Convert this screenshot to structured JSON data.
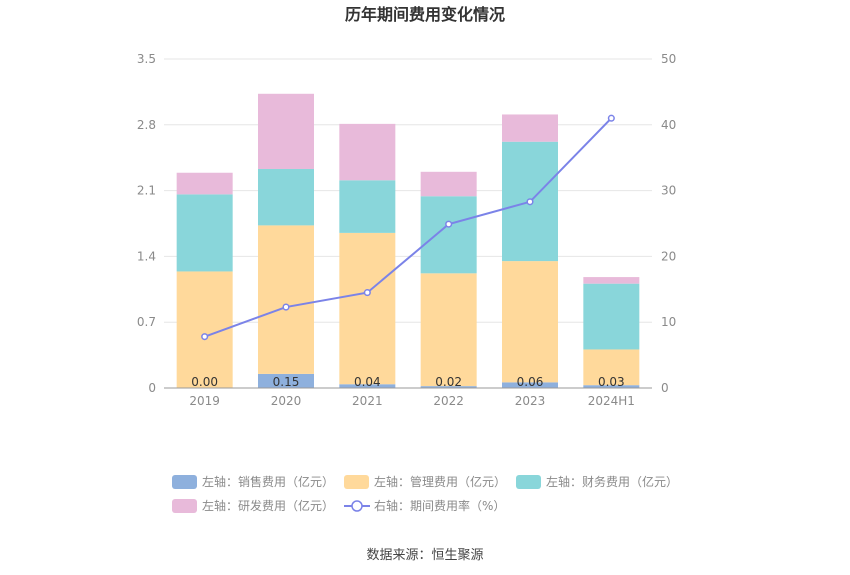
{
  "chart_data": {
    "type": "bar",
    "title": "历年期间费用变化情况",
    "categories": [
      "2019",
      "2020",
      "2021",
      "2022",
      "2023",
      "2024H1"
    ],
    "stacked": true,
    "series": [
      {
        "name": "左轴：销售费用（亿元）",
        "axis": "left",
        "type": "bar",
        "color": "#8eb0dd",
        "values": [
          0.0,
          0.15,
          0.04,
          0.02,
          0.06,
          0.03
        ],
        "labels": [
          "0.00",
          "0.15",
          "0.04",
          "0.02",
          "0.06",
          "0.03"
        ]
      },
      {
        "name": "左轴：管理费用（亿元）",
        "axis": "left",
        "type": "bar",
        "color": "#ffd99b",
        "values": [
          1.24,
          1.58,
          1.61,
          1.2,
          1.29,
          0.38
        ]
      },
      {
        "name": "左轴：财务费用（亿元）",
        "axis": "left",
        "type": "bar",
        "color": "#89d6da",
        "values": [
          0.82,
          0.6,
          0.56,
          0.82,
          1.27,
          0.7
        ]
      },
      {
        "name": "左轴：研发费用（亿元）",
        "axis": "left",
        "type": "bar",
        "color": "#e8bada",
        "values": [
          0.23,
          0.8,
          0.6,
          0.26,
          0.29,
          0.07
        ]
      },
      {
        "name": "右轴：期间费用率（%）",
        "axis": "right",
        "type": "line",
        "color": "#7b83e8",
        "values": [
          7.8,
          12.3,
          14.5,
          24.9,
          28.3,
          41.0
        ]
      }
    ],
    "y_left": {
      "min": 0,
      "max": 3.5,
      "ticks": [
        "0",
        "0.7",
        "1.4",
        "2.1",
        "2.8",
        "3.5"
      ]
    },
    "y_right": {
      "min": 0,
      "max": 50,
      "ticks": [
        "0",
        "10",
        "20",
        "30",
        "40",
        "50"
      ]
    },
    "grid": true,
    "legend": "bottom"
  },
  "source": "数据来源：恒生聚源"
}
